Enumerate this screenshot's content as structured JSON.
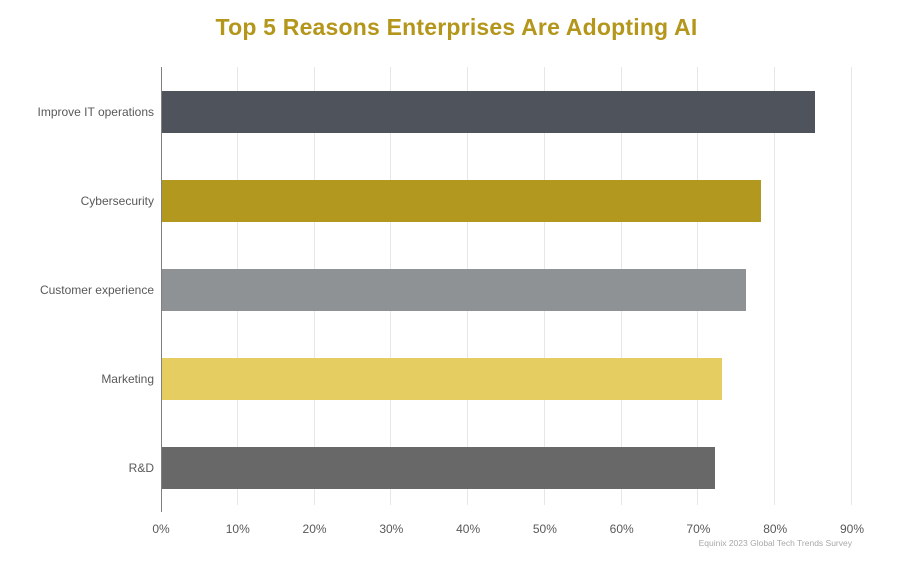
{
  "chart_data": {
    "type": "bar",
    "orientation": "horizontal",
    "title": "Top 5 Reasons Enterprises Are Adopting AI",
    "categories": [
      "Improve IT operations",
      "Cybersecurity",
      "Customer experience",
      "Marketing",
      "R&D"
    ],
    "values": [
      85,
      78,
      76,
      73,
      72
    ],
    "value_unit": "%",
    "bar_colors": [
      "#4f545c",
      "#b2981e",
      "#8f9294",
      "#e6cd61",
      "#686868"
    ],
    "x_ticks": [
      "0%",
      "10%",
      "20%",
      "30%",
      "40%",
      "50%",
      "60%",
      "70%",
      "80%",
      "90%"
    ],
    "xlim": [
      0,
      90
    ],
    "grid": true,
    "legend_position": "none",
    "source": "Equinix 2023 Global Tech Trends Survey",
    "colors": {
      "title": "#b3961a",
      "axis_line": "#808080",
      "gridline": "#e7e7e7",
      "category_label": "#595959",
      "tick_label": "#595959",
      "source_note": "#a8a8a8",
      "background": "#ffffff"
    }
  }
}
